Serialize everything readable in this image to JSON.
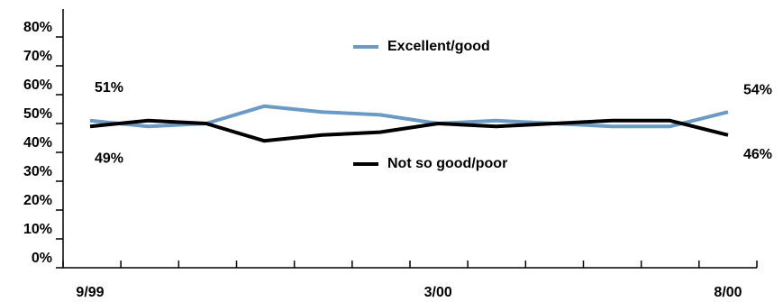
{
  "chart_data": {
    "type": "line",
    "categories": [
      "9/99",
      null,
      null,
      null,
      null,
      null,
      "3/00",
      null,
      null,
      null,
      null,
      "8/00"
    ],
    "series": [
      {
        "name": "Excellent/good",
        "color": "#6b9ac4",
        "values": [
          51,
          49,
          50,
          56,
          54,
          53,
          50,
          51,
          50,
          49,
          49,
          54
        ],
        "value_labels": [
          "51%",
          null,
          null,
          null,
          null,
          null,
          null,
          null,
          null,
          null,
          null,
          "54%"
        ]
      },
      {
        "name": "Not so good/poor",
        "color": "#000000",
        "values": [
          49,
          51,
          50,
          44,
          46,
          47,
          50,
          49,
          50,
          51,
          51,
          46
        ],
        "value_labels": [
          "49%",
          null,
          null,
          null,
          null,
          null,
          null,
          null,
          null,
          null,
          null,
          "46%"
        ]
      }
    ],
    "ylim": [
      0,
      80
    ],
    "yticks": [
      {
        "value": 0,
        "label": "0%"
      },
      {
        "value": 10,
        "label": "10%"
      },
      {
        "value": 20,
        "label": "20%"
      },
      {
        "value": 30,
        "label": "30%"
      },
      {
        "value": 40,
        "label": "40%"
      },
      {
        "value": 50,
        "label": "50%"
      },
      {
        "value": 60,
        "label": "60%"
      },
      {
        "value": 70,
        "label": "70%"
      },
      {
        "value": 80,
        "label": "80%"
      }
    ],
    "grid": false
  }
}
